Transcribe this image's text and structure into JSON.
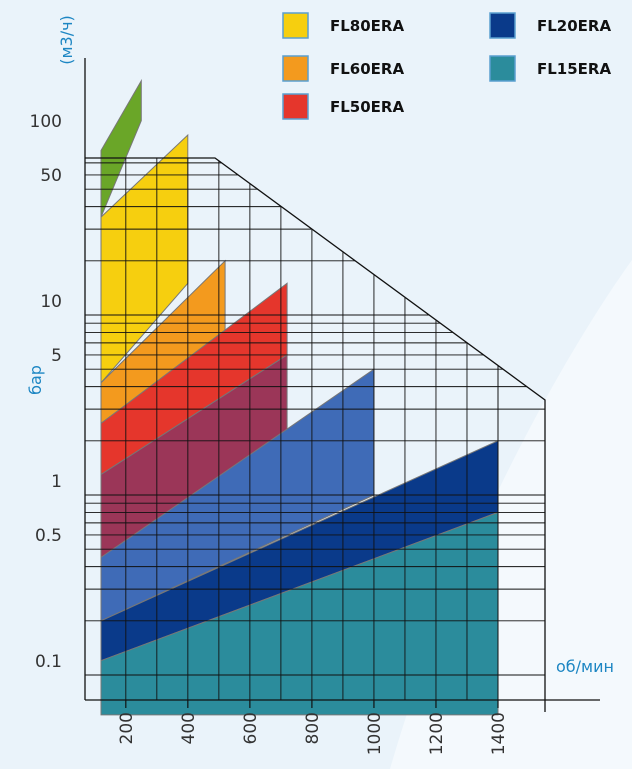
{
  "chart_data": {
    "type": "area",
    "title": "",
    "xlabel": "об/мин",
    "ylabel": "бар",
    "y2label": "(м3/ч)",
    "x_ticks": [
      "200",
      "400",
      "600",
      "800",
      "1000",
      "1200",
      "1400"
    ],
    "y_ticks": [
      "100",
      "50",
      "10",
      "5",
      "1",
      "0.5",
      "0.1"
    ],
    "legend": [
      {
        "name": "FL80ERA",
        "color": "#f6cf0f"
      },
      {
        "name": "FL60ERA",
        "color": "#f39a1e"
      },
      {
        "name": "FL50ERA",
        "color": "#e5362c"
      },
      {
        "name": "FL20ERA",
        "color": "#0a3a8a"
      },
      {
        "name": "FL15ERA",
        "color": "#2b8c9c"
      }
    ],
    "series": [
      {
        "color": "#6aa628",
        "x": [
          120,
          250
        ],
        "top": [
          82,
          200
        ],
        "bottom": [
          35,
          120
        ]
      },
      {
        "color": "#f6cf0f",
        "x": [
          120,
          400
        ],
        "top": [
          35,
          100
        ],
        "bottom": [
          4.2,
          15
        ]
      },
      {
        "color": "#f39a1e",
        "x": [
          120,
          520
        ],
        "top": [
          4.2,
          20
        ],
        "bottom": [
          2.5,
          8
        ]
      },
      {
        "color": "#e5362c",
        "x": [
          120,
          720
        ],
        "top": [
          2.5,
          15
        ],
        "bottom": [
          1.3,
          6
        ]
      },
      {
        "color": "#9b3658",
        "x": [
          120,
          720
        ],
        "top": [
          1.3,
          6
        ],
        "bottom": [
          0.45,
          2
        ]
      },
      {
        "color": "#3f6bb7",
        "x": [
          120,
          1000
        ],
        "top": [
          0.45,
          5
        ],
        "bottom": [
          0.2,
          1
        ]
      },
      {
        "color": "#0a3a8a",
        "x": [
          120,
          1400
        ],
        "top": [
          0.2,
          2
        ],
        "bottom": [
          0.12,
          0.8
        ]
      },
      {
        "color": "#2b8c9c",
        "x": [
          120,
          1400
        ],
        "top": [
          0.12,
          0.8
        ],
        "bottom": [
          0.06,
          0.06
        ]
      }
    ]
  }
}
